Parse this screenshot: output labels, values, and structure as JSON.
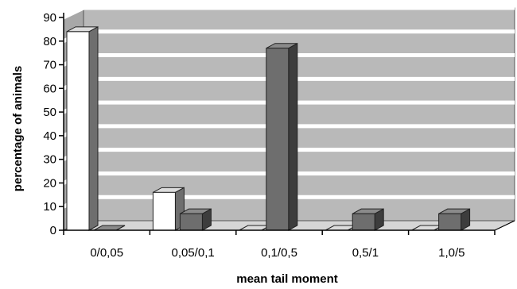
{
  "chart_data": {
    "type": "bar",
    "title": "",
    "xlabel": "mean tail moment",
    "ylabel": "percentage of animals",
    "ylim": [
      0,
      90
    ],
    "yticks": [
      0,
      10,
      20,
      30,
      40,
      50,
      60,
      70,
      80,
      90
    ],
    "categories": [
      "0/0,05",
      "0,05/0,1",
      "0,1/0,5",
      "0,5/1",
      "1,0/5"
    ],
    "series": [
      {
        "values": [
          84,
          16,
          0,
          0,
          0
        ],
        "color": "#ffffff"
      },
      {
        "values": [
          0,
          7,
          77,
          7,
          7
        ],
        "color": "#6e6e6e"
      }
    ],
    "grid": true,
    "legend": "none",
    "style": "3d"
  }
}
